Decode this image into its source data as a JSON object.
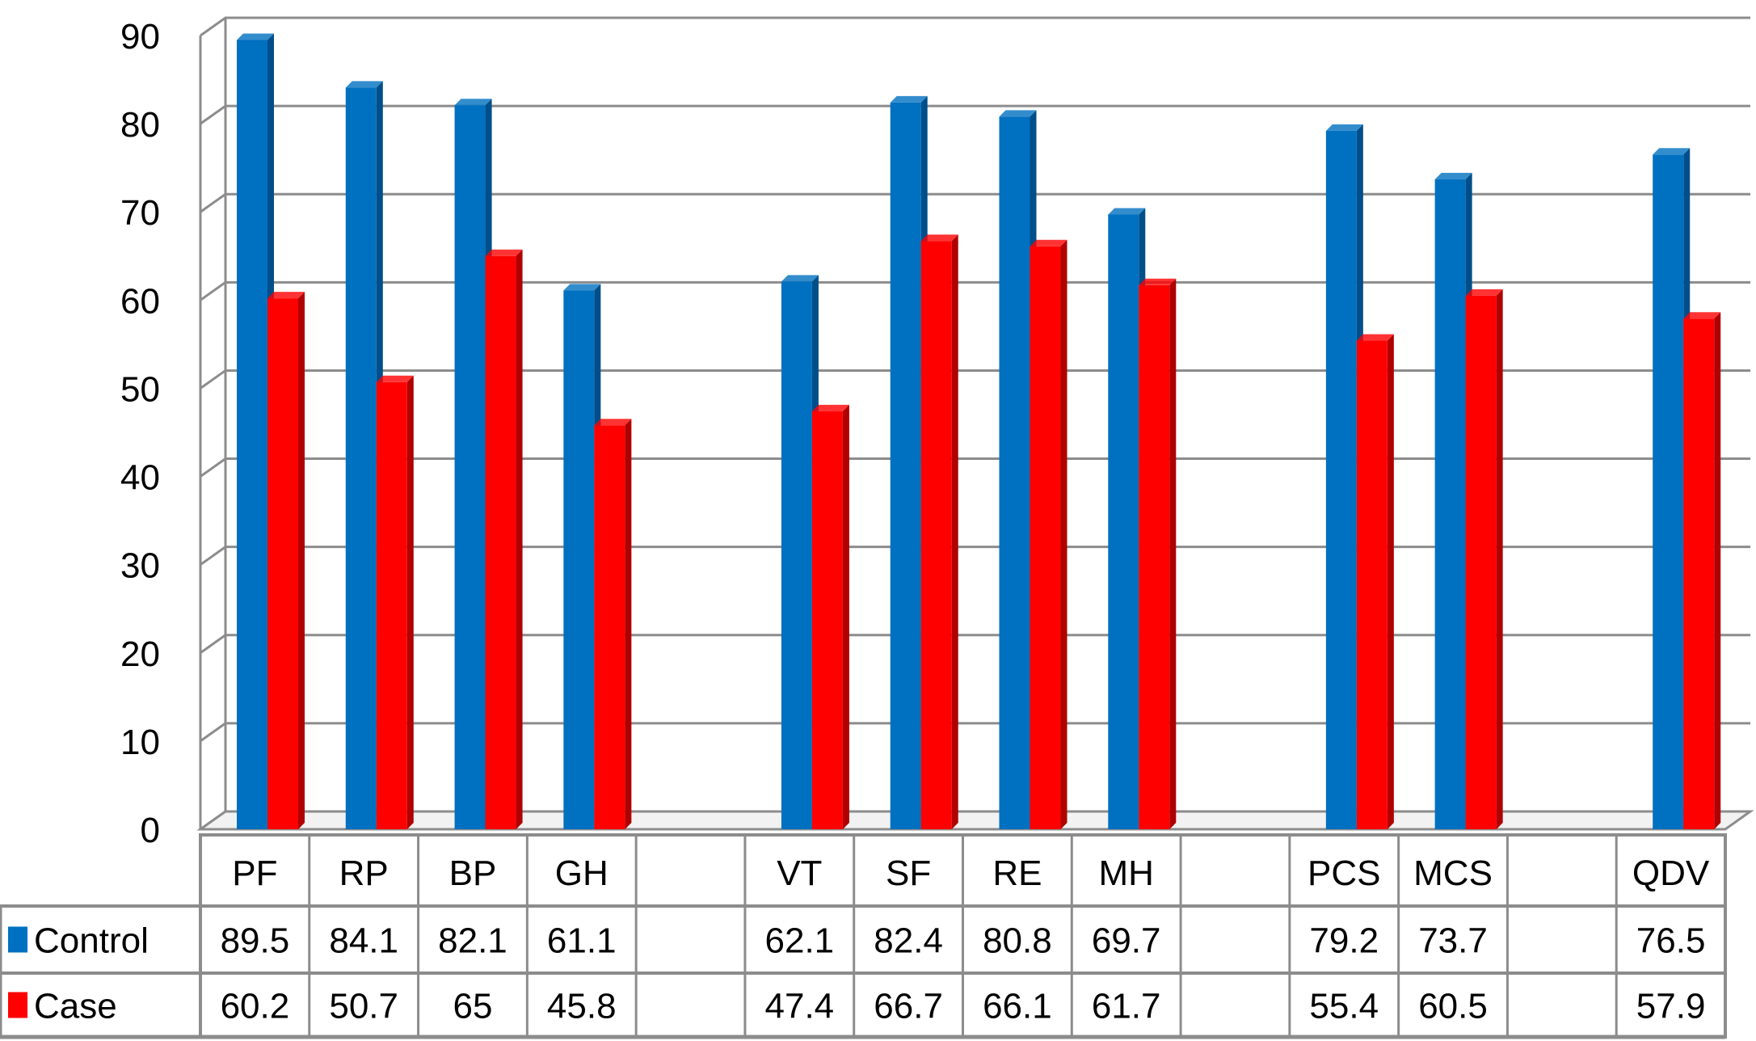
{
  "chart_data": {
    "type": "bar",
    "title": "",
    "xlabel": "",
    "ylabel": "",
    "ylim": [
      0,
      90
    ],
    "yticks": [
      0,
      10,
      20,
      30,
      40,
      50,
      60,
      70,
      80,
      90
    ],
    "grid": true,
    "legend_placement": "data-table-left",
    "categories": [
      "PF",
      "RP",
      "BP",
      "GH",
      "",
      "VT",
      "SF",
      "RE",
      "MH",
      "",
      "PCS",
      "MCS",
      "",
      "QDV"
    ],
    "series": [
      {
        "name": "Control",
        "color": "#0070C0",
        "values": [
          89.5,
          84.1,
          82.1,
          61.1,
          null,
          62.1,
          82.4,
          80.8,
          69.7,
          null,
          79.2,
          73.7,
          null,
          76.5
        ]
      },
      {
        "name": "Case",
        "color": "#FF0000",
        "values": [
          60.2,
          50.7,
          65,
          45.8,
          null,
          47.4,
          66.7,
          66.1,
          61.7,
          null,
          55.4,
          60.5,
          null,
          57.9
        ]
      }
    ]
  }
}
